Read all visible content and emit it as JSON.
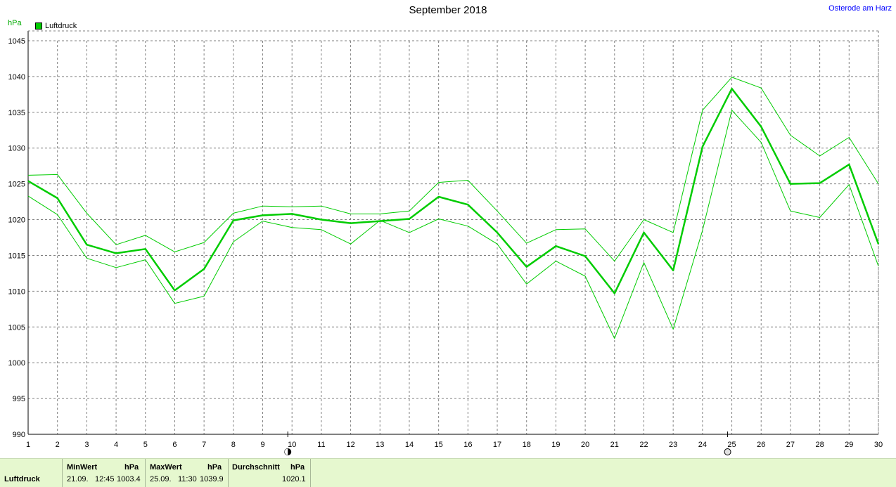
{
  "title": "September 2018",
  "location": "Osterode am Harz",
  "unit_label": "hPa",
  "legend": {
    "label": "Luftdruck",
    "color": "#00cc00"
  },
  "chart_data": {
    "type": "line",
    "title": "September 2018",
    "ylabel": "hPa",
    "x": [
      1,
      2,
      3,
      4,
      5,
      6,
      7,
      8,
      9,
      10,
      11,
      12,
      13,
      14,
      15,
      16,
      17,
      18,
      19,
      20,
      21,
      22,
      23,
      24,
      25,
      26,
      27,
      28,
      29,
      30
    ],
    "ylim": [
      990,
      1045
    ],
    "yticks": [
      990,
      995,
      1000,
      1005,
      1010,
      1015,
      1020,
      1025,
      1030,
      1035,
      1040,
      1045
    ],
    "grid": true,
    "legend_position": "top-left",
    "moon_phase_days": [
      10,
      25
    ],
    "series": [
      {
        "name": "Luftdruck",
        "role": "mean",
        "color": "#00cc00",
        "values": [
          1025.4,
          1023.0,
          1016.5,
          1015.3,
          1015.9,
          1010.1,
          1013.1,
          1019.9,
          1020.6,
          1020.8,
          1020.0,
          1019.5,
          1019.8,
          1020.1,
          1023.2,
          1022.1,
          1018.2,
          1013.4,
          1016.3,
          1014.9,
          1009.7,
          1018.2,
          1012.9,
          1030.2,
          1038.3,
          1033.0,
          1025.0,
          1025.1,
          1027.7,
          1016.6
        ]
      },
      {
        "role": "max",
        "color": "#00cc00",
        "values": [
          1026.2,
          1026.3,
          1020.9,
          1016.5,
          1017.8,
          1015.5,
          1016.8,
          1020.9,
          1021.9,
          1021.8,
          1021.9,
          1020.8,
          1020.8,
          1021.2,
          1025.2,
          1025.5,
          1021.2,
          1016.7,
          1018.6,
          1018.7,
          1014.2,
          1020.0,
          1018.2,
          1035.3,
          1039.9,
          1038.4,
          1031.8,
          1028.9,
          1031.5,
          1025.0
        ]
      },
      {
        "role": "min",
        "color": "#00cc00",
        "values": [
          1023.3,
          1020.7,
          1014.6,
          1013.3,
          1014.4,
          1008.3,
          1009.3,
          1016.9,
          1019.8,
          1018.9,
          1018.6,
          1016.6,
          1019.9,
          1018.2,
          1020.1,
          1019.1,
          1016.6,
          1011.0,
          1014.2,
          1012.1,
          1003.4,
          1014.0,
          1004.7,
          1018.5,
          1035.3,
          1030.8,
          1021.2,
          1020.3,
          1024.9,
          1013.5
        ]
      }
    ]
  },
  "footer": {
    "series_name": "Luftdruck",
    "min_header": "MinWert",
    "min_unit": "hPa",
    "min_date": "21.09.",
    "min_time": "12:45",
    "min_value": "1003.4",
    "max_header": "MaxWert",
    "max_unit": "hPa",
    "max_date": "25.09.",
    "max_time": "11:30",
    "max_value": "1039.9",
    "avg_header": "Durchschnitt",
    "avg_unit": "hPa",
    "avg_value": "1020.1"
  }
}
